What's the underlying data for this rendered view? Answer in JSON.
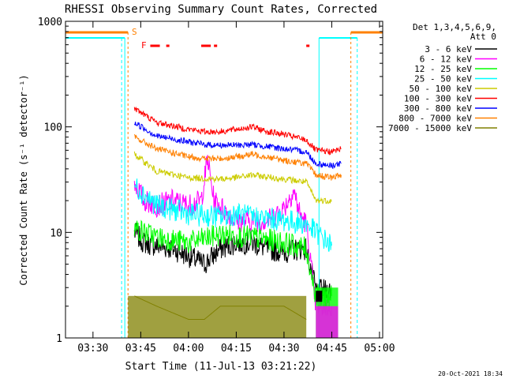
{
  "chart_data": {
    "type": "line",
    "title": "RHESSI Observing Summary Count Rates, Corrected",
    "xlabel": "Start Time (11-Jul-13 03:21:22)",
    "ylabel": "Corrected Count Rate (s⁻¹ detector⁻¹)",
    "yscale": "log",
    "ylim": [
      1,
      1000
    ],
    "xlim": [
      "03:21:22",
      "05:01:00"
    ],
    "x_ticks": [
      "03:30",
      "03:45",
      "04:00",
      "04:15",
      "04:30",
      "04:45",
      "05:00"
    ],
    "y_ticks": [
      "1",
      "10",
      "100",
      "1000"
    ],
    "legend": {
      "placement": "top-right",
      "header": [
        "Det 1,3,4,5,6,9,",
        "Att 0"
      ]
    },
    "flags": {
      "S_label": "S",
      "F_label": "F"
    },
    "timestamp": "20-Oct-2021 18:34",
    "series": [
      {
        "name": "3 - 6 keV",
        "color": "#000000",
        "x": [
          "03:43",
          "03:46",
          "03:50",
          "03:55",
          "04:00",
          "04:05",
          "04:10",
          "04:15",
          "04:20",
          "04:25",
          "04:30",
          "04:35",
          "04:37",
          "04:40",
          "04:45"
        ],
        "values": [
          10,
          8,
          7.5,
          7,
          6,
          5,
          7,
          8,
          8,
          7,
          6.5,
          7,
          7,
          2.8,
          2.8
        ]
      },
      {
        "name": "6 - 12 keV",
        "color": "#ff00ff",
        "x": [
          "03:43",
          "03:46",
          "03:50",
          "03:55",
          "04:00",
          "04:04",
          "04:06",
          "04:08",
          "04:15",
          "04:20",
          "04:25",
          "04:30",
          "04:33",
          "04:35",
          "04:37",
          "04:40",
          "04:45"
        ],
        "values": [
          30,
          20,
          18,
          20,
          18,
          20,
          50,
          20,
          13,
          13,
          13,
          17,
          25,
          15,
          12,
          2,
          2
        ]
      },
      {
        "name": "12 - 25 keV",
        "color": "#00ff00",
        "x": [
          "03:43",
          "03:50",
          "04:00",
          "04:10",
          "04:20",
          "04:30",
          "04:37",
          "04:40",
          "04:45"
        ],
        "values": [
          11,
          9,
          8,
          9.5,
          9,
          8,
          7,
          2.5,
          2.5
        ]
      },
      {
        "name": "25 - 50 keV",
        "color": "#00ffff",
        "x": [
          "03:43",
          "03:50",
          "04:00",
          "04:10",
          "04:15",
          "04:20",
          "04:30",
          "04:37",
          "04:45"
        ],
        "values": [
          28,
          18,
          15,
          14,
          15,
          14,
          13,
          12,
          7.5
        ]
      },
      {
        "name": "50 - 100 keV",
        "color": "#cccc00",
        "x": [
          "03:43",
          "03:50",
          "04:00",
          "04:10",
          "04:15",
          "04:20",
          "04:30",
          "04:37",
          "04:40",
          "04:45"
        ],
        "values": [
          55,
          38,
          33,
          32,
          33,
          35,
          32,
          30,
          20,
          20
        ]
      },
      {
        "name": "100 - 300 keV",
        "color": "#ff0000",
        "x": [
          "03:43",
          "03:50",
          "04:00",
          "04:05",
          "04:10",
          "04:15",
          "04:20",
          "04:25",
          "04:30",
          "04:37",
          "04:40",
          "04:45",
          "04:48"
        ],
        "values": [
          150,
          110,
          95,
          90,
          90,
          95,
          100,
          90,
          85,
          75,
          60,
          58,
          62
        ]
      },
      {
        "name": "300 - 800 keV",
        "color": "#0000ff",
        "x": [
          "03:43",
          "03:50",
          "04:00",
          "04:05",
          "04:10",
          "04:15",
          "04:20",
          "04:25",
          "04:30",
          "04:37",
          "04:40",
          "04:45",
          "04:48"
        ],
        "values": [
          110,
          82,
          72,
          68,
          67,
          67,
          68,
          65,
          62,
          58,
          45,
          43,
          45
        ]
      },
      {
        "name": "800 - 7000 keV",
        "color": "#ff8000",
        "x": [
          "03:43",
          "03:50",
          "04:00",
          "04:05",
          "04:10",
          "04:15",
          "04:20",
          "04:25",
          "04:30",
          "04:37",
          "04:40",
          "04:45",
          "04:48"
        ],
        "values": [
          80,
          62,
          52,
          50,
          50,
          52,
          55,
          52,
          48,
          45,
          35,
          33,
          35
        ]
      },
      {
        "name": "7000 - 15000 keV",
        "color": "#808000",
        "x": [
          "03:43",
          "03:50",
          "04:00",
          "04:05",
          "04:10",
          "04:15",
          "04:20",
          "04:25",
          "04:30",
          "04:37"
        ],
        "values": [
          2.5,
          2.0,
          1.5,
          1.5,
          2.0,
          2.0,
          2.0,
          2.0,
          2.0,
          1.5
        ]
      }
    ]
  }
}
